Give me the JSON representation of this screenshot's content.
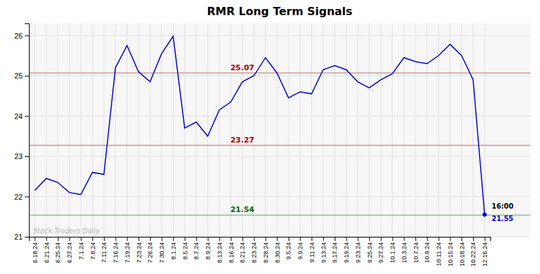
{
  "chart_data": {
    "type": "line",
    "title": "RMR Long Term Signals",
    "categories": [
      "6.18.24",
      "6.21.24",
      "6.25.24",
      "6.27.24",
      "7.1.24",
      "7.8.24",
      "7.11.24",
      "7.16.24",
      "7.19.24",
      "7.23.24",
      "7.26.24",
      "7.30.24",
      "8.1.24",
      "8.5.24",
      "8.7.24",
      "8.9.24",
      "8.13.24",
      "8.16.24",
      "8.21.24",
      "8.23.24",
      "8.28.24",
      "8.30.24",
      "9.5.24",
      "9.9.24",
      "9.11.24",
      "9.13.24",
      "9.17.24",
      "9.19.24",
      "9.23.24",
      "9.25.24",
      "9.27.24",
      "10.1.24",
      "10.3.24",
      "10.7.24",
      "10.9.24",
      "10.11.24",
      "10.15.24",
      "10.18.24",
      "10.22.24",
      "12.16.24"
    ],
    "values": [
      22.15,
      22.45,
      22.35,
      22.1,
      22.05,
      22.6,
      22.55,
      25.2,
      25.75,
      25.1,
      24.85,
      25.55,
      25.98,
      23.7,
      23.85,
      23.5,
      24.15,
      24.35,
      24.85,
      25.0,
      25.45,
      25.07,
      24.45,
      24.6,
      24.55,
      25.15,
      25.25,
      25.15,
      24.85,
      24.7,
      24.9,
      25.05,
      25.45,
      25.35,
      25.3,
      25.5,
      25.78,
      25.5,
      24.9,
      21.55
    ],
    "color": "#0000cc",
    "ylim": [
      21.0,
      26.3
    ],
    "yticks": [
      21,
      22,
      23,
      24,
      25,
      26
    ],
    "grid": true,
    "hlines": [
      {
        "value": 25.07,
        "label": "25.07",
        "color": "#aa0000"
      },
      {
        "value": 23.27,
        "label": "23.27",
        "color": "#aa0000"
      },
      {
        "value": 21.54,
        "label": "21.54",
        "color": "#006600"
      }
    ],
    "annotations": [
      {
        "text": "16:00"
      },
      {
        "text": "21.55",
        "color": "#0000cc"
      }
    ],
    "watermark": "Stock Traders Daily"
  }
}
